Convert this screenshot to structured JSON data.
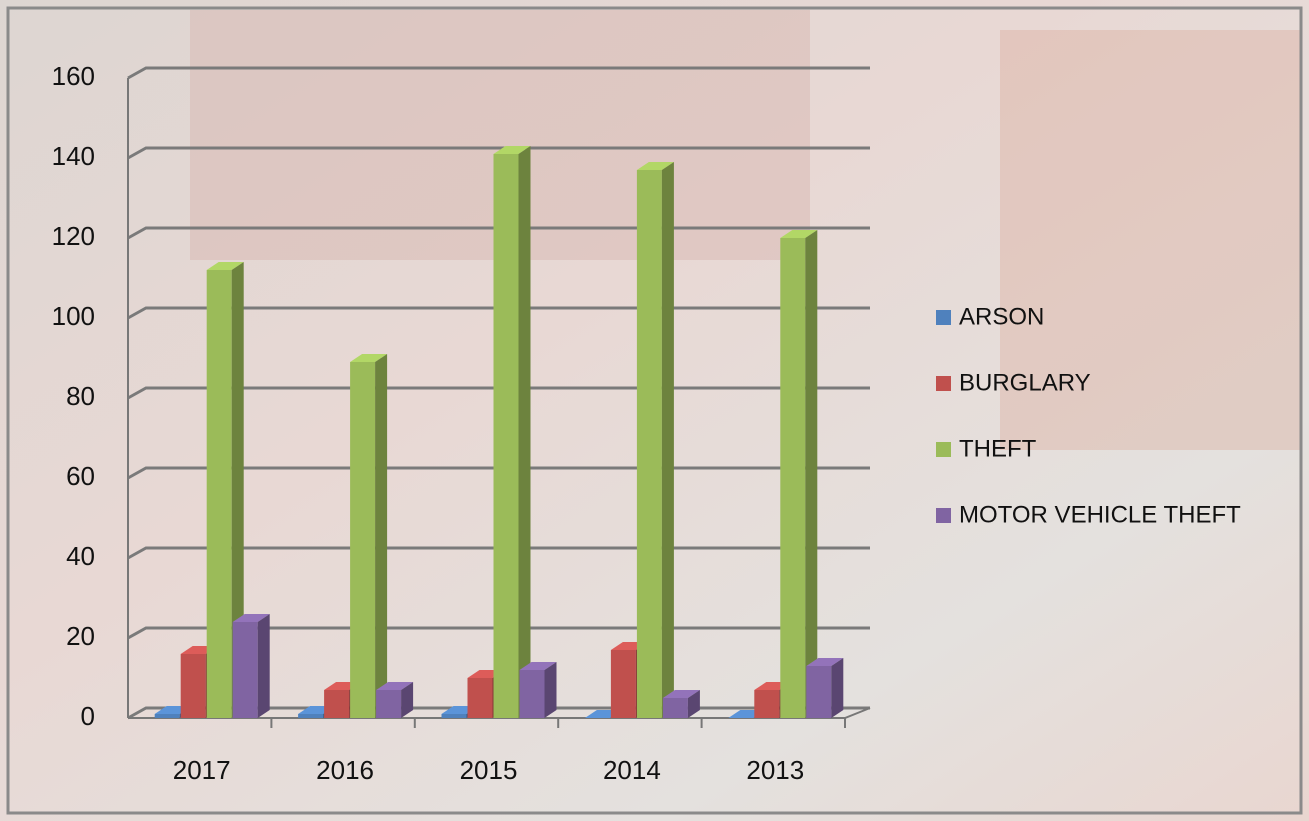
{
  "chart_data": {
    "type": "bar3d",
    "categories": [
      "2017",
      "2016",
      "2015",
      "2014",
      "2013"
    ],
    "series": [
      {
        "name": "ARSON",
        "color": "#4f81bd",
        "values": [
          1,
          1,
          1,
          0,
          0
        ]
      },
      {
        "name": "BURGLARY",
        "color": "#c0504d",
        "values": [
          16,
          7,
          10,
          17,
          7
        ]
      },
      {
        "name": "THEFT",
        "color": "#9bbb59",
        "values": [
          112,
          89,
          141,
          137,
          120
        ]
      },
      {
        "name": "MOTOR VEHICLE THEFT",
        "color": "#8064a2",
        "values": [
          24,
          7,
          12,
          5,
          13
        ]
      }
    ],
    "ylim": [
      0,
      160
    ],
    "yticks": [
      0,
      20,
      40,
      60,
      80,
      100,
      120,
      140,
      160
    ],
    "grid": true,
    "legend": "right"
  }
}
